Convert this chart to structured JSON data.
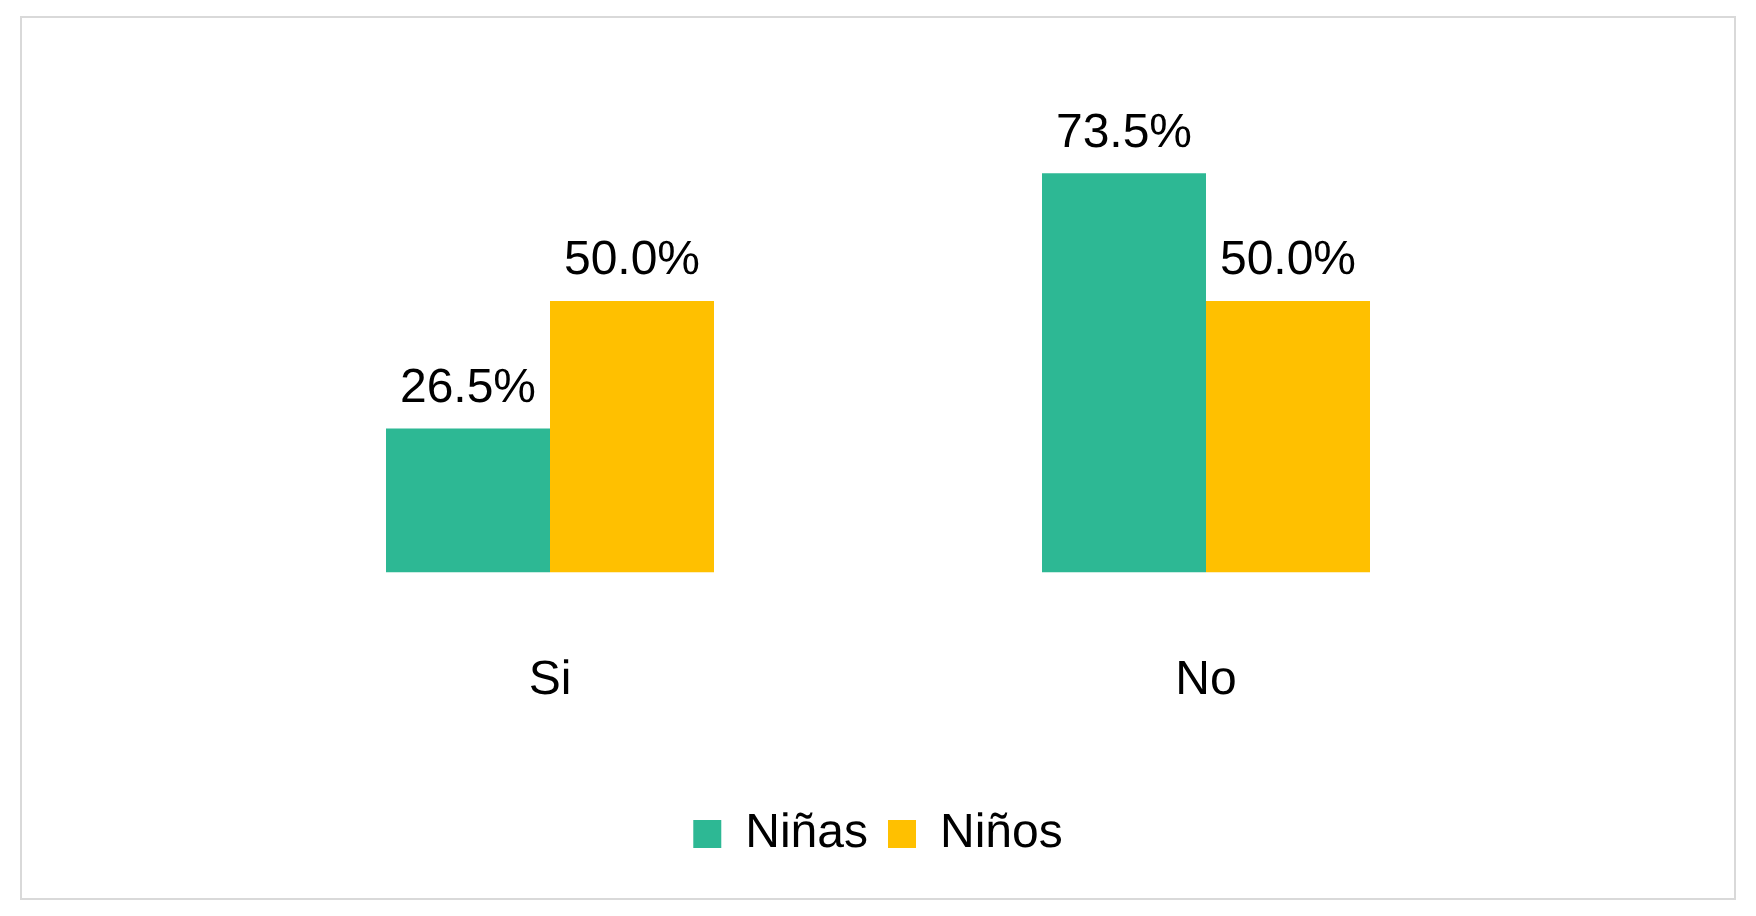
{
  "chart_data": {
    "type": "bar",
    "categories": [
      "Si",
      "No"
    ],
    "series": [
      {
        "name": "Niñas",
        "color": "#2db894",
        "values": [
          26.5,
          73.5
        ],
        "value_labels": [
          "26.5%",
          "73.5%"
        ]
      },
      {
        "name": "Niños",
        "color": "#ffc000",
        "values": [
          50.0,
          50.0
        ],
        "value_labels": [
          "50.0%",
          "50.0%"
        ]
      }
    ],
    "legend": "bottom",
    "grid": false
  }
}
